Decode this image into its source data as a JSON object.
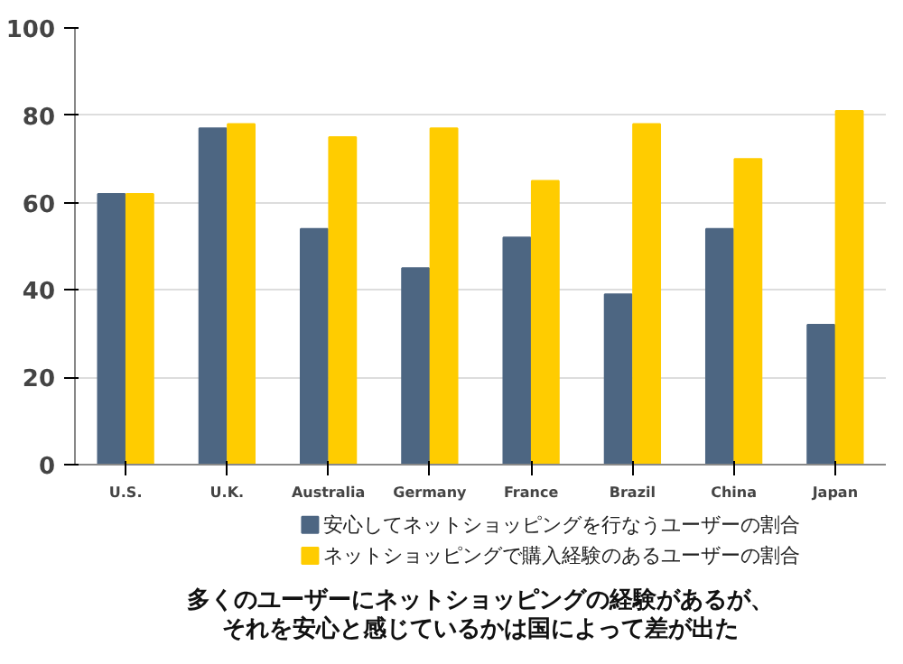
{
  "chart_data": {
    "type": "bar",
    "title": "多くのユーザーにネットショッピングの経験があるが、それを安心と感じているかは国によって差が出た",
    "categories": [
      "U.S.",
      "U.K.",
      "Australia",
      "Germany",
      "France",
      "Brazil",
      "China",
      "Japan"
    ],
    "series": [
      {
        "name": "安心してネットショッピングを行なうユーザーの割合",
        "color": "#4d6682",
        "values": [
          62,
          77,
          54,
          45,
          52,
          39,
          54,
          32
        ]
      },
      {
        "name": "ネットショッピングで購入経験のあるユーザーの割合",
        "color": "#ffcc00",
        "values": [
          62,
          78,
          75,
          77,
          65,
          78,
          70,
          81
        ]
      }
    ],
    "ylim": [
      0,
      100
    ],
    "yticks": [
      0,
      20,
      40,
      60,
      80,
      100
    ],
    "grid": "y",
    "legend": "bottom"
  }
}
